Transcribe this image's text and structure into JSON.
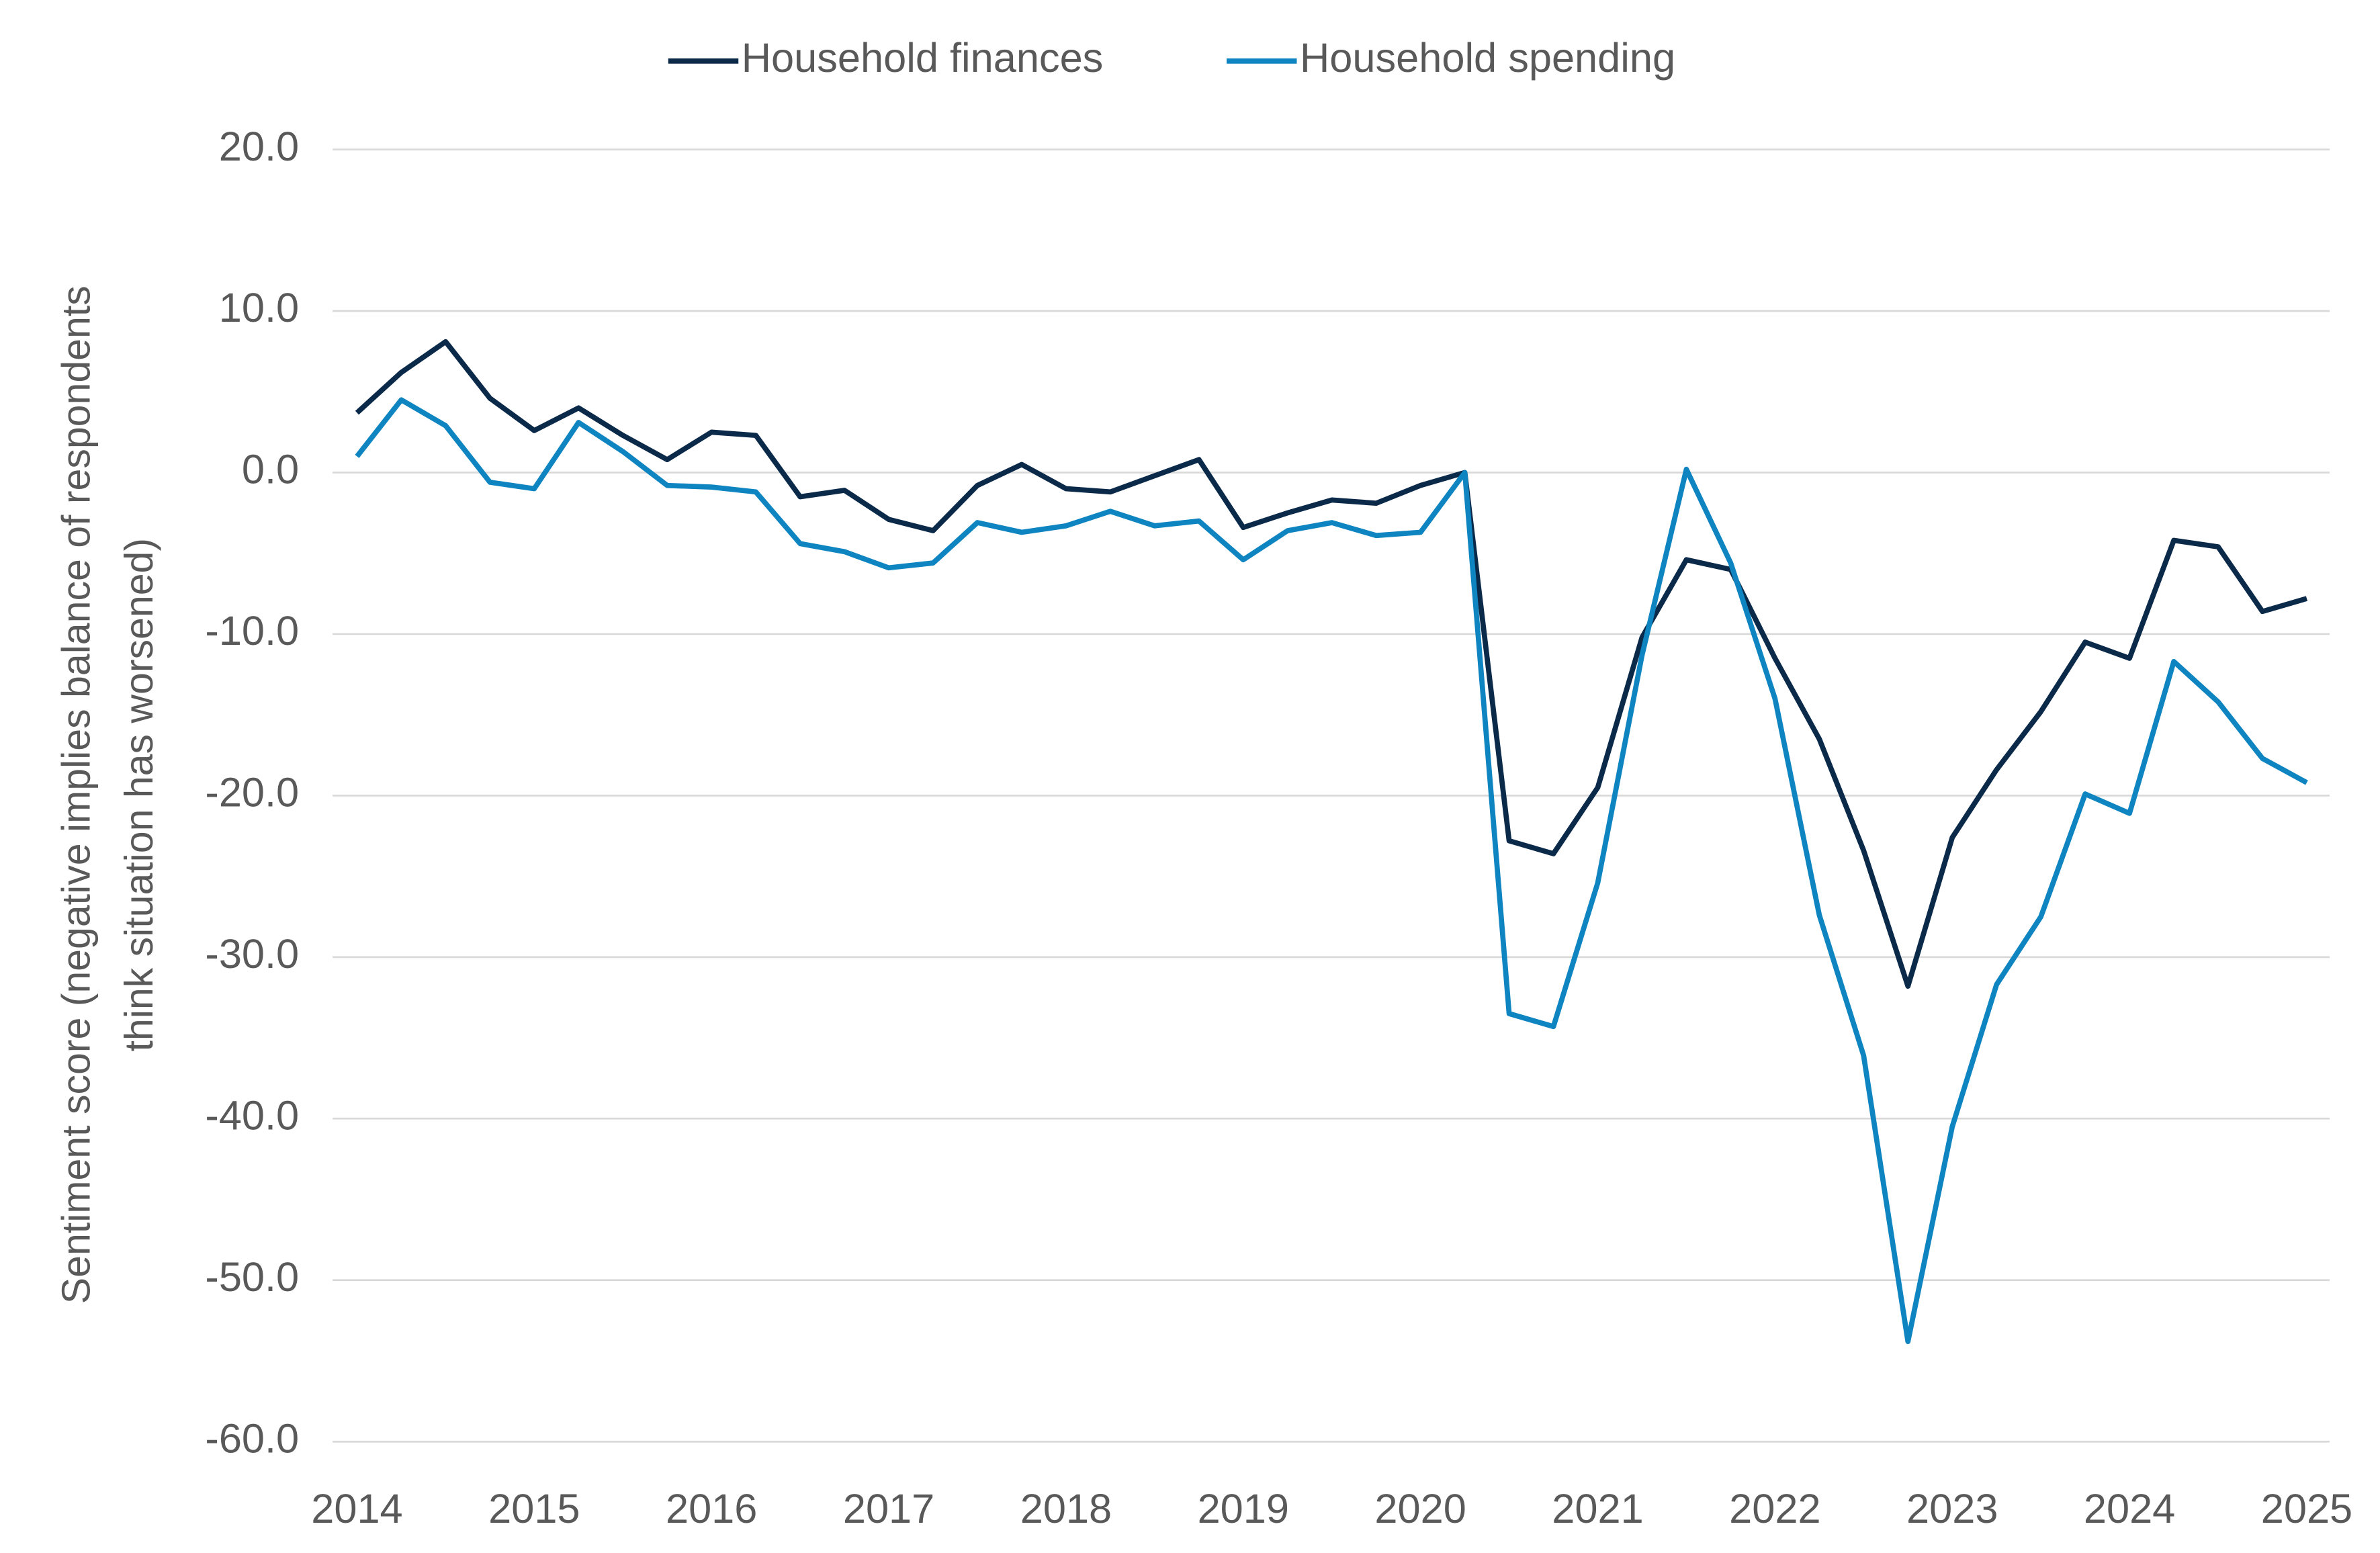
{
  "chart_data": {
    "type": "line",
    "ylabel": [
      "Sentiment score (negative implies balance of respondents",
      "think situation has worsened)"
    ],
    "x": [
      2014,
      2014.25,
      2014.5,
      2014.75,
      2015,
      2015.25,
      2015.5,
      2015.75,
      2016,
      2016.25,
      2016.5,
      2016.75,
      2017,
      2017.25,
      2017.5,
      2017.75,
      2018,
      2018.25,
      2018.5,
      2018.75,
      2019,
      2019.25,
      2019.5,
      2019.75,
      2020,
      2020.25,
      2020.5,
      2020.75,
      2021,
      2021.25,
      2021.5,
      2021.75,
      2022,
      2022.25,
      2022.5,
      2022.75,
      2023,
      2023.25,
      2023.5,
      2023.75,
      2024,
      2024.25,
      2024.5,
      2024.75,
      2025
    ],
    "series": [
      {
        "name": "Household finances",
        "color": "#0b2a4a",
        "values": [
          3.7,
          6.2,
          8.1,
          4.6,
          2.6,
          4.0,
          2.3,
          0.8,
          2.5,
          2.3,
          -1.5,
          -1.1,
          -2.9,
          -3.6,
          -0.8,
          0.5,
          -1.0,
          -1.2,
          -0.2,
          0.8,
          -3.4,
          -2.5,
          -1.7,
          -1.9,
          -0.8,
          0.0,
          -22.8,
          -23.6,
          -19.5,
          -10.2,
          -5.4,
          -6.0,
          -11.5,
          -16.5,
          -23.4,
          -31.8,
          -22.6,
          -18.4,
          -14.8,
          -10.5,
          -11.5,
          -4.2,
          -4.6,
          -8.6,
          -7.8
        ]
      },
      {
        "name": "Household spending",
        "color": "#0e84c0",
        "values": [
          1.0,
          4.5,
          2.9,
          -0.6,
          -1.0,
          3.1,
          1.3,
          -0.8,
          -0.9,
          -1.2,
          -4.4,
          -4.9,
          -5.9,
          -5.6,
          -3.1,
          -3.7,
          -3.3,
          -2.4,
          -3.3,
          -3.0,
          -5.4,
          -3.6,
          -3.1,
          -3.9,
          -3.7,
          0.0,
          -33.5,
          -34.3,
          -25.4,
          -11.3,
          0.2,
          -5.6,
          -14.0,
          -27.4,
          -36.1,
          -53.8,
          -40.5,
          -31.7,
          -27.5,
          -19.9,
          -21.1,
          -11.7,
          -14.2,
          -17.7,
          -19.2
        ]
      }
    ],
    "xlim": [
      2014,
      2025
    ],
    "xticks": [
      2014,
      2015,
      2016,
      2017,
      2018,
      2019,
      2020,
      2021,
      2022,
      2023,
      2024,
      2025
    ],
    "ylim": [
      -60,
      20
    ],
    "yticks": [
      {
        "value": -60,
        "label": "-60.0"
      },
      {
        "value": -50,
        "label": "-50.0"
      },
      {
        "value": -40,
        "label": "-40.0"
      },
      {
        "value": -30,
        "label": "-30.0"
      },
      {
        "value": -20,
        "label": "-20.0"
      },
      {
        "value": -10,
        "label": "-10.0"
      },
      {
        "value": 0,
        "label": "0.0"
      },
      {
        "value": 10,
        "label": "10.0"
      },
      {
        "value": 20,
        "label": "20.0"
      }
    ],
    "grid": true,
    "legend": "top"
  }
}
